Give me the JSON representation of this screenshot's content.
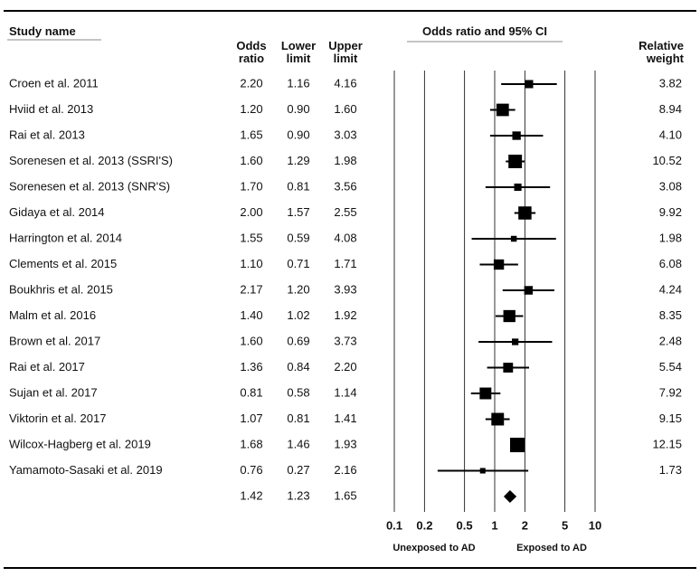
{
  "chart_data": {
    "type": "forest",
    "columns": {
      "study": "Study name",
      "odds_ratio": "Odds ratio",
      "lower": "Lower limit",
      "upper": "Upper limit",
      "plot": "Odds ratio and 95% CI",
      "weight": "Relative weight"
    },
    "studies": [
      "Croen et al. 2011",
      "Hviid et al. 2013",
      "Rai et al. 2013",
      "Sorenesen et al. 2013 (SSRI'S)",
      "Sorenesen et al. 2013 (SNR'S)",
      "Gidaya et al. 2014",
      "Harrington et al. 2014",
      "Clements et al. 2015",
      "Boukhris et al. 2015",
      "Malm et al. 2016",
      "Brown et al. 2017",
      "Rai et al. 2017",
      "Sujan et al. 2017",
      "Viktorin et al. 2017",
      "Wilcox-Hagberg et al. 2019",
      "Yamamoto-Sasaki et al. 2019",
      null
    ],
    "odds_ratio": {
      "values": [
        2.2,
        1.2,
        1.65,
        1.6,
        1.7,
        2.0,
        1.55,
        1.1,
        2.17,
        1.4,
        1.6,
        1.36,
        0.81,
        1.07,
        1.68,
        0.76,
        1.42
      ],
      "value_labels": [
        "2.20",
        "1.20",
        "1.65",
        "1.60",
        "1.70",
        "2.00",
        "1.55",
        "1.10",
        "2.17",
        "1.40",
        "1.60",
        "1.36",
        "0.81",
        "1.07",
        "1.68",
        "0.76",
        "1.42"
      ]
    },
    "lower": {
      "values": [
        1.16,
        0.9,
        0.9,
        1.29,
        0.81,
        1.57,
        0.59,
        0.71,
        1.2,
        1.02,
        0.69,
        0.84,
        0.58,
        0.81,
        1.46,
        0.27,
        1.23
      ],
      "value_labels": [
        "1.16",
        "0.90",
        "0.90",
        "1.29",
        "0.81",
        "1.57",
        "0.59",
        "0.71",
        "1.20",
        "1.02",
        "0.69",
        "0.84",
        "0.58",
        "0.81",
        "1.46",
        "0.27",
        "1.23"
      ]
    },
    "upper": {
      "values": [
        4.16,
        1.6,
        3.03,
        1.98,
        3.56,
        2.55,
        4.08,
        1.71,
        3.93,
        1.92,
        3.73,
        2.2,
        1.14,
        1.41,
        1.93,
        2.16,
        1.65
      ],
      "value_labels": [
        "4.16",
        "1.60",
        "3.03",
        "1.98",
        "3.56",
        "2.55",
        "4.08",
        "1.71",
        "3.93",
        "1.92",
        "3.73",
        "2.20",
        "1.14",
        "1.41",
        "1.93",
        "2.16",
        "1.65"
      ]
    },
    "weight": {
      "values": [
        3.82,
        8.94,
        4.1,
        10.52,
        3.08,
        9.92,
        1.98,
        6.08,
        4.24,
        8.35,
        2.48,
        5.54,
        7.92,
        9.15,
        12.15,
        1.73,
        null
      ],
      "value_labels": [
        "3.82",
        "8.94",
        "4.10",
        "10.52",
        "3.08",
        "9.92",
        "1.98",
        "6.08",
        "4.24",
        "8.35",
        "2.48",
        "5.54",
        "7.92",
        "9.15",
        "12.15",
        "1.73",
        null
      ]
    },
    "xlim": [
      0.1,
      10
    ],
    "xticks": [
      0.1,
      0.2,
      0.5,
      1,
      2,
      5,
      10
    ],
    "log_scale": true,
    "grid": true,
    "color": "#000000",
    "x_label_left": "Unexposed to AD",
    "x_label_right": "Exposed to AD"
  }
}
